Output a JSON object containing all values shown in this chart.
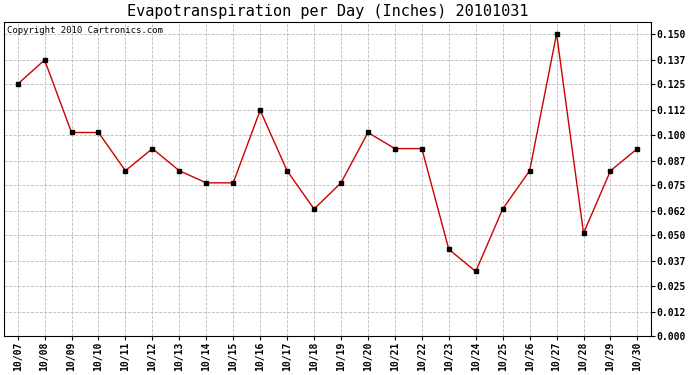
{
  "title": "Evapotranspiration per Day (Inches) 20101031",
  "copyright_text": "Copyright 2010 Cartronics.com",
  "dates": [
    "10/07",
    "10/08",
    "10/09",
    "10/10",
    "10/11",
    "10/12",
    "10/13",
    "10/14",
    "10/15",
    "10/16",
    "10/17",
    "10/18",
    "10/19",
    "10/20",
    "10/21",
    "10/22",
    "10/23",
    "10/24",
    "10/25",
    "10/26",
    "10/27",
    "10/28",
    "10/29",
    "10/30"
  ],
  "values": [
    0.125,
    0.137,
    0.101,
    0.101,
    0.082,
    0.093,
    0.082,
    0.076,
    0.076,
    0.112,
    0.082,
    0.063,
    0.076,
    0.101,
    0.093,
    0.093,
    0.043,
    0.032,
    0.063,
    0.082,
    0.15,
    0.051,
    0.082,
    0.093
  ],
  "line_color": "#cc0000",
  "marker_color": "#000000",
  "background_color": "#ffffff",
  "plot_bg_color": "#ffffff",
  "grid_color": "#bbbbbb",
  "ylim": [
    0.0,
    0.156
  ],
  "yticks": [
    0.0,
    0.012,
    0.025,
    0.037,
    0.05,
    0.062,
    0.075,
    0.087,
    0.1,
    0.112,
    0.125,
    0.137,
    0.15
  ],
  "title_fontsize": 11,
  "tick_fontsize": 7,
  "copyright_fontsize": 6.5
}
